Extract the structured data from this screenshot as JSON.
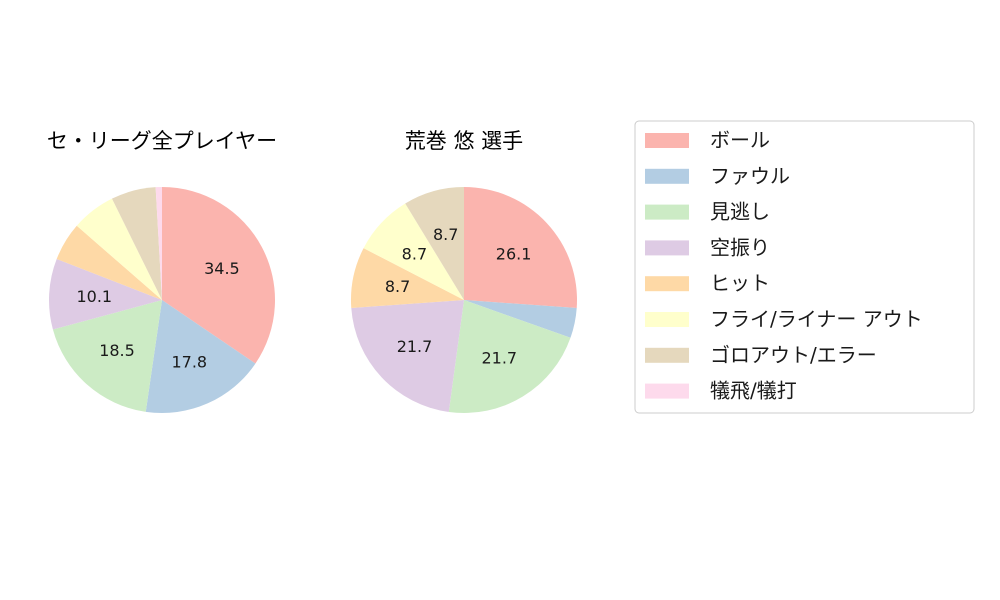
{
  "chart_data": {
    "type": "pie",
    "legend": {
      "placement": "right",
      "entries": [
        "ボール",
        "ファウル",
        "見逃し",
        "空振り",
        "ヒット",
        "フライ/ライナー アウト",
        "ゴロアウト/エラー",
        "犠飛/犠打"
      ]
    },
    "colors": [
      "#fbb4ae",
      "#b3cde3",
      "#ccebc5",
      "#decbe4",
      "#fed9a6",
      "#ffffcc",
      "#e5d8bd",
      "#fddaec"
    ],
    "charts": [
      {
        "title": "セ・リーグ全プレイヤー",
        "values": [
          34.5,
          17.8,
          18.5,
          10.1,
          5.5,
          6.3,
          6.4,
          0.9
        ],
        "labels": [
          "34.5",
          "17.8",
          "18.5",
          "10.1",
          "",
          "",
          "",
          ""
        ]
      },
      {
        "title": "荒巻 悠  選手",
        "values": [
          26.1,
          4.3,
          21.7,
          21.7,
          8.7,
          8.7,
          8.7,
          0
        ],
        "labels": [
          "26.1",
          "",
          "21.7",
          "21.7",
          "8.7",
          "8.7",
          "8.7",
          ""
        ]
      }
    ]
  }
}
